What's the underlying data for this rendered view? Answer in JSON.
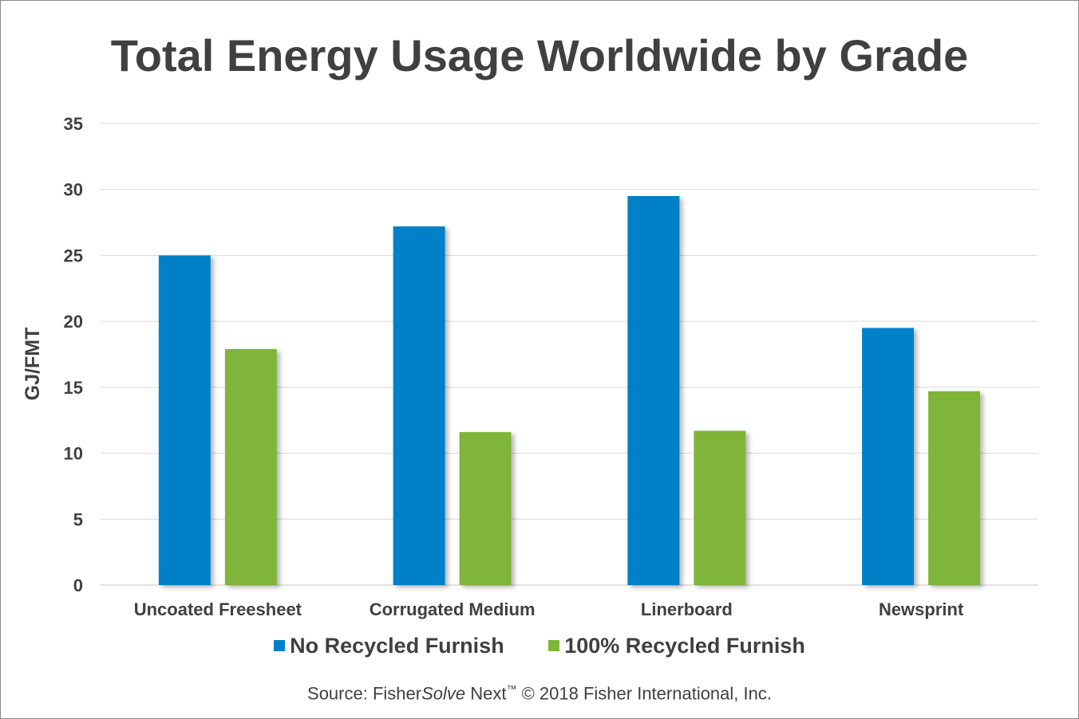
{
  "colors": {
    "series_1": "#0080c6",
    "series_2": "#7fb539",
    "grid": "#d9d9d9",
    "text": "#404040"
  },
  "chart_data": {
    "type": "bar",
    "title": "Total Energy Usage Worldwide by Grade",
    "xlabel": "",
    "ylabel": "GJ/FMT",
    "ylim": [
      0,
      35
    ],
    "yticks": [
      0,
      5,
      10,
      15,
      20,
      25,
      30,
      35
    ],
    "grid": true,
    "legend": "bottom",
    "categories": [
      "Uncoated Freesheet",
      "Corrugated Medium",
      "Linerboard",
      "Newsprint"
    ],
    "series": [
      {
        "name": "No Recycled Furnish",
        "color": "#0080c6",
        "values": [
          25.0,
          27.2,
          29.5,
          19.5
        ]
      },
      {
        "name": "100% Recycled Furnish",
        "color": "#7fb539",
        "values": [
          17.9,
          11.6,
          11.7,
          14.7
        ]
      }
    ]
  },
  "source": {
    "prefix": "Source: Fisher",
    "italic": "Solve",
    "product": " Next",
    "trademark": "™",
    "suffix": " © 2018 Fisher International, Inc."
  }
}
